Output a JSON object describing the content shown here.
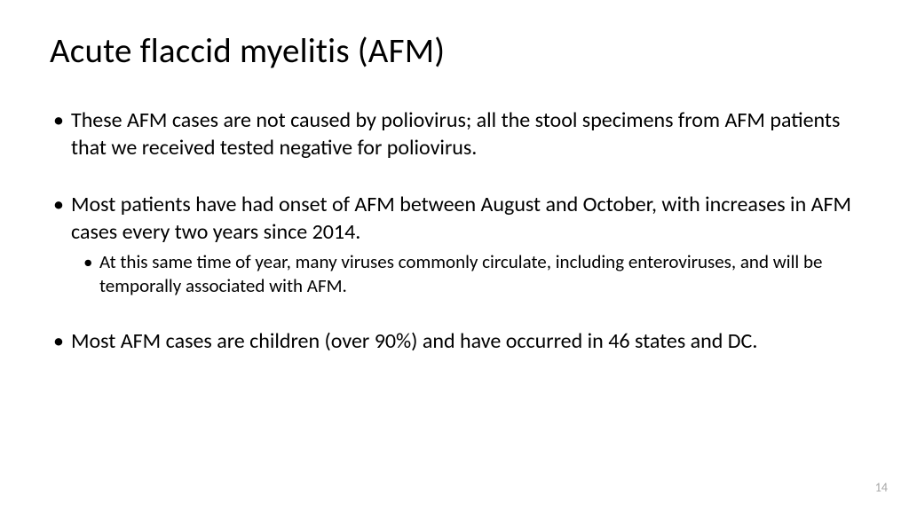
{
  "slide": {
    "title": "Acute flaccid myelitis (AFM)",
    "bullets": [
      {
        "text": "These AFM cases are not caused by poliovirus; all the stool specimens from AFM patients that we received tested negative for poliovirus.",
        "sub": []
      },
      {
        "text": "Most patients have had onset of AFM between August and October, with increases in AFM cases every two years since 2014.",
        "sub": [
          "At this same time of year, many viruses commonly circulate, including enteroviruses, and will be temporally associated with AFM."
        ]
      },
      {
        "text": "Most AFM cases are children (over 90%) and have occurred in 46 states and DC.",
        "sub": []
      }
    ],
    "page_number": "14",
    "background_color": "#ffffff",
    "title_color": "#000000",
    "text_color": "#000000",
    "page_number_color": "#a6a6a6",
    "title_fontsize": 39,
    "bullet_fontsize": 24,
    "subbullet_fontsize": 21,
    "page_number_fontsize": 14
  }
}
